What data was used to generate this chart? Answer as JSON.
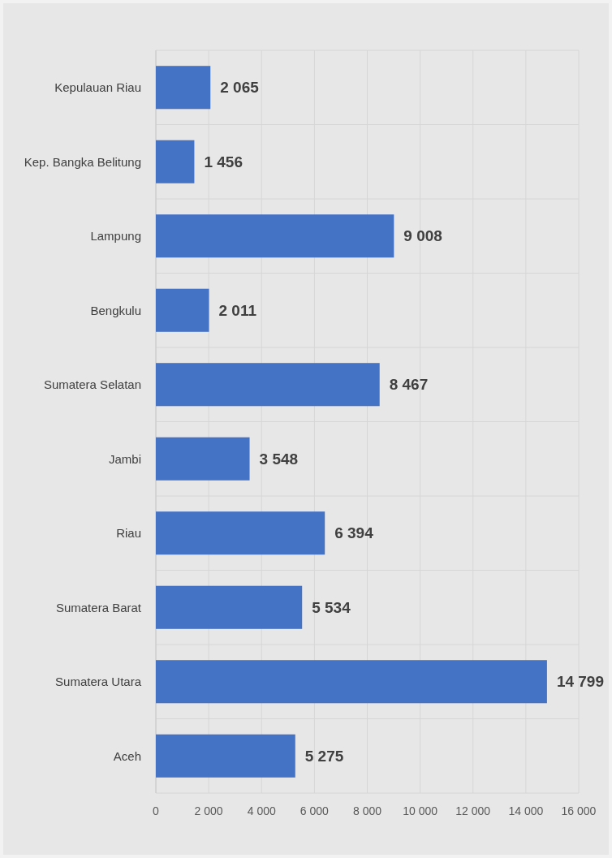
{
  "chart_data": {
    "type": "bar",
    "orientation": "horizontal",
    "categories": [
      "Kepulauan Riau",
      "Kep. Bangka Belitung",
      "Lampung",
      "Bengkulu",
      "Sumatera Selatan",
      "Jambi",
      "Riau",
      "Sumatera Barat",
      "Sumatera Utara",
      "Aceh"
    ],
    "values": [
      2065,
      1456,
      9008,
      2011,
      8467,
      3548,
      6394,
      5534,
      14799,
      5275
    ],
    "color": "#4472c4",
    "data_labels": true,
    "grid": true,
    "xlim": [
      0,
      16000
    ],
    "xticks": [
      0,
      {
        "value": 2000,
        "label": "2 000"
      },
      {
        "value": 4000,
        "label": "4 000"
      },
      {
        "value": 6000,
        "label": "6 000"
      },
      {
        "value": 8000,
        "label": "8 000"
      },
      {
        "value": 10000,
        "label": "10 000"
      },
      {
        "value": 12000,
        "label": "12 000"
      },
      {
        "value": 14000,
        "label": "14 000"
      },
      {
        "value": 16000,
        "label": "16 000"
      }
    ]
  }
}
